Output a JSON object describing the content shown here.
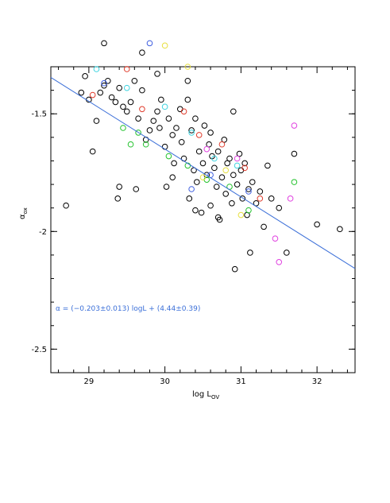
{
  "chart_data": {
    "type": "scatter",
    "title": "",
    "xlabel": "log L",
    "xlabel_sub": "OV",
    "ylabel": "α",
    "ylabel_sub": "ox",
    "xlim": [
      28.5,
      32.5
    ],
    "ylim": [
      -2.6,
      -1.3
    ],
    "xticks": [
      {
        "value": 29,
        "label": "29"
      },
      {
        "value": 30,
        "label": "30"
      },
      {
        "value": 31,
        "label": "31"
      },
      {
        "value": 32,
        "label": "32"
      }
    ],
    "yticks": [
      {
        "value": -1.5,
        "label": "-1.5"
      },
      {
        "value": -2,
        "label": "-2"
      },
      {
        "value": -2.5,
        "label": "-2.5"
      }
    ],
    "grid": false,
    "legend": "none",
    "fit": {
      "slope": -0.203,
      "intercept": 4.44,
      "color": "#3b6fd8",
      "text": "α  = (−0.203±0.013) logL    + (4.44±0.39)"
    },
    "series": [
      {
        "color": "#000000",
        "points": [
          [
            28.7,
            -1.89
          ],
          [
            28.9,
            -1.41
          ],
          [
            28.95,
            -1.34
          ],
          [
            29.0,
            -1.44
          ],
          [
            29.05,
            -1.66
          ],
          [
            29.1,
            -1.53
          ],
          [
            29.15,
            -1.41
          ],
          [
            29.2,
            -1.38
          ],
          [
            29.25,
            -1.36
          ],
          [
            29.3,
            -1.43
          ],
          [
            29.35,
            -1.45
          ],
          [
            29.38,
            -1.86
          ],
          [
            29.4,
            -1.39
          ],
          [
            29.45,
            -1.47
          ],
          [
            29.5,
            -1.49
          ],
          [
            29.55,
            -1.45
          ],
          [
            29.6,
            -1.36
          ],
          [
            29.62,
            -1.82
          ],
          [
            29.65,
            -1.52
          ],
          [
            29.7,
            -1.4
          ],
          [
            29.75,
            -1.61
          ],
          [
            29.8,
            -1.57
          ],
          [
            29.85,
            -1.53
          ],
          [
            29.9,
            -1.49
          ],
          [
            29.93,
            -1.56
          ],
          [
            29.95,
            -1.44
          ],
          [
            30.0,
            -1.64
          ],
          [
            30.02,
            -1.81
          ],
          [
            30.05,
            -1.52
          ],
          [
            30.1,
            -1.59
          ],
          [
            30.12,
            -1.71
          ],
          [
            30.15,
            -1.56
          ],
          [
            30.2,
            -1.48
          ],
          [
            30.22,
            -1.62
          ],
          [
            30.25,
            -1.69
          ],
          [
            30.3,
            -1.44
          ],
          [
            30.32,
            -1.86
          ],
          [
            30.35,
            -1.57
          ],
          [
            30.38,
            -1.74
          ],
          [
            30.4,
            -1.52
          ],
          [
            30.42,
            -1.79
          ],
          [
            30.45,
            -1.66
          ],
          [
            30.48,
            -1.92
          ],
          [
            30.5,
            -1.71
          ],
          [
            30.52,
            -1.55
          ],
          [
            30.55,
            -1.76
          ],
          [
            30.58,
            -1.63
          ],
          [
            30.6,
            -1.89
          ],
          [
            30.62,
            -1.68
          ],
          [
            30.65,
            -1.73
          ],
          [
            30.68,
            -1.81
          ],
          [
            30.7,
            -1.66
          ],
          [
            30.72,
            -1.95
          ],
          [
            30.75,
            -1.77
          ],
          [
            30.78,
            -1.61
          ],
          [
            30.8,
            -1.84
          ],
          [
            30.82,
            -1.71
          ],
          [
            30.85,
            -1.69
          ],
          [
            30.88,
            -1.88
          ],
          [
            30.9,
            -1.76
          ],
          [
            30.92,
            -2.16
          ],
          [
            30.95,
            -1.8
          ],
          [
            30.98,
            -1.67
          ],
          [
            31.0,
            -1.74
          ],
          [
            31.02,
            -1.86
          ],
          [
            31.05,
            -1.71
          ],
          [
            31.08,
            -1.93
          ],
          [
            31.1,
            -1.82
          ],
          [
            31.12,
            -2.09
          ],
          [
            31.15,
            -1.79
          ],
          [
            31.2,
            -1.88
          ],
          [
            31.25,
            -1.83
          ],
          [
            31.3,
            -1.98
          ],
          [
            31.4,
            -1.86
          ],
          [
            31.5,
            -1.9
          ],
          [
            31.6,
            -2.09
          ],
          [
            31.7,
            -1.67
          ],
          [
            32.0,
            -1.97
          ],
          [
            32.3,
            -1.99
          ],
          [
            29.2,
            -1.2
          ],
          [
            29.7,
            -1.24
          ],
          [
            29.9,
            -1.33
          ],
          [
            30.3,
            -1.36
          ],
          [
            30.6,
            -1.58
          ],
          [
            30.9,
            -1.49
          ],
          [
            29.4,
            -1.81
          ],
          [
            30.1,
            -1.77
          ],
          [
            30.4,
            -1.91
          ],
          [
            30.7,
            -1.94
          ],
          [
            31.35,
            -1.72
          ]
        ]
      },
      {
        "color": "#22c22c",
        "points": [
          [
            29.45,
            -1.56
          ],
          [
            29.55,
            -1.63
          ],
          [
            29.65,
            -1.58
          ],
          [
            29.75,
            -1.63
          ],
          [
            30.05,
            -1.68
          ],
          [
            30.3,
            -1.72
          ],
          [
            30.55,
            -1.78
          ],
          [
            30.85,
            -1.81
          ],
          [
            31.1,
            -1.91
          ],
          [
            31.7,
            -1.79
          ]
        ]
      },
      {
        "color": "#e03c2c",
        "points": [
          [
            29.05,
            -1.42
          ],
          [
            29.5,
            -1.31
          ],
          [
            29.7,
            -1.48
          ],
          [
            30.25,
            -1.49
          ],
          [
            30.45,
            -1.59
          ],
          [
            30.75,
            -1.63
          ],
          [
            31.05,
            -1.73
          ],
          [
            31.25,
            -1.86
          ]
        ]
      },
      {
        "color": "#e040e0",
        "points": [
          [
            30.55,
            -1.65
          ],
          [
            30.95,
            -1.69
          ],
          [
            31.45,
            -2.03
          ],
          [
            31.5,
            -2.13
          ],
          [
            31.65,
            -1.86
          ],
          [
            31.7,
            -1.55
          ]
        ]
      },
      {
        "color": "#3fd4e0",
        "points": [
          [
            29.1,
            -1.31
          ],
          [
            29.5,
            -1.39
          ],
          [
            30.0,
            -1.47
          ],
          [
            30.35,
            -1.58
          ],
          [
            30.65,
            -1.69
          ],
          [
            30.95,
            -1.72
          ]
        ]
      },
      {
        "color": "#3f5fe0",
        "points": [
          [
            29.2,
            -1.37
          ],
          [
            29.8,
            -1.2
          ],
          [
            30.6,
            -1.76
          ],
          [
            31.1,
            -1.83
          ],
          [
            30.35,
            -1.82
          ]
        ]
      },
      {
        "color": "#e8e040",
        "points": [
          [
            30.0,
            -1.21
          ],
          [
            30.3,
            -1.3
          ],
          [
            30.5,
            -1.77
          ],
          [
            30.8,
            -1.74
          ],
          [
            31.0,
            -1.93
          ]
        ]
      }
    ]
  }
}
